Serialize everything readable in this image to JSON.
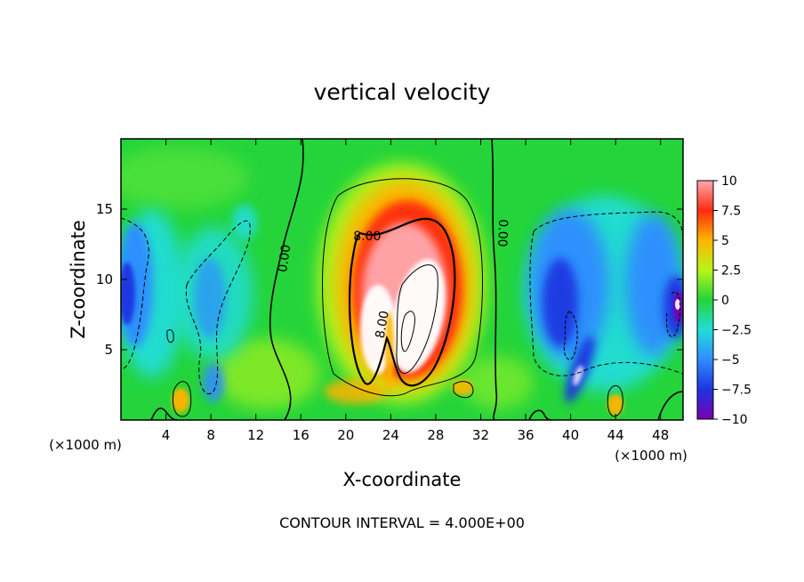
{
  "chart_data": {
    "type": "heatmap",
    "title": "vertical velocity",
    "xlabel": "X-coordinate",
    "ylabel": "Z-coordinate",
    "x_unit_left": "(×1000 m)",
    "x_unit_right": "(×1000 m)",
    "xlim": [
      0,
      50
    ],
    "ylim": [
      0,
      20
    ],
    "x_ticks": [
      4,
      8,
      12,
      16,
      20,
      24,
      28,
      32,
      36,
      40,
      44,
      48
    ],
    "y_ticks": [
      5,
      10,
      15
    ],
    "colorbar": {
      "ticks": [
        "10",
        "7.5",
        "5",
        "2.5",
        "0",
        "−2.5",
        "−5",
        "−7.5",
        "−10"
      ],
      "range": [
        -10,
        10
      ]
    },
    "contour_labels": [
      {
        "text": "8.00",
        "x": 21.9,
        "y": 13.1,
        "rotate": 0
      },
      {
        "text": "0.00",
        "x": 14.5,
        "y": 11.5,
        "rotate": -82
      },
      {
        "text": "0.00",
        "x": 34.0,
        "y": 13.3,
        "rotate": 92
      },
      {
        "text": "8.00",
        "x": 23.2,
        "y": 6.8,
        "rotate": -80
      }
    ],
    "annotation": "CONTOUR INTERVAL = 4.000E+00",
    "colors": {
      "c_min": "#7a00b0",
      "c_neg75": "#1d34e0",
      "c_neg5": "#2f8cff",
      "c_neg25": "#22ddd8",
      "c_zero": "#24d43a",
      "c_pos25": "#b8f51a",
      "c_pos5": "#ffb400",
      "c_pos75": "#ff2a10",
      "c_max": "#ffa8ae",
      "c_core": "#ffffff"
    }
  }
}
